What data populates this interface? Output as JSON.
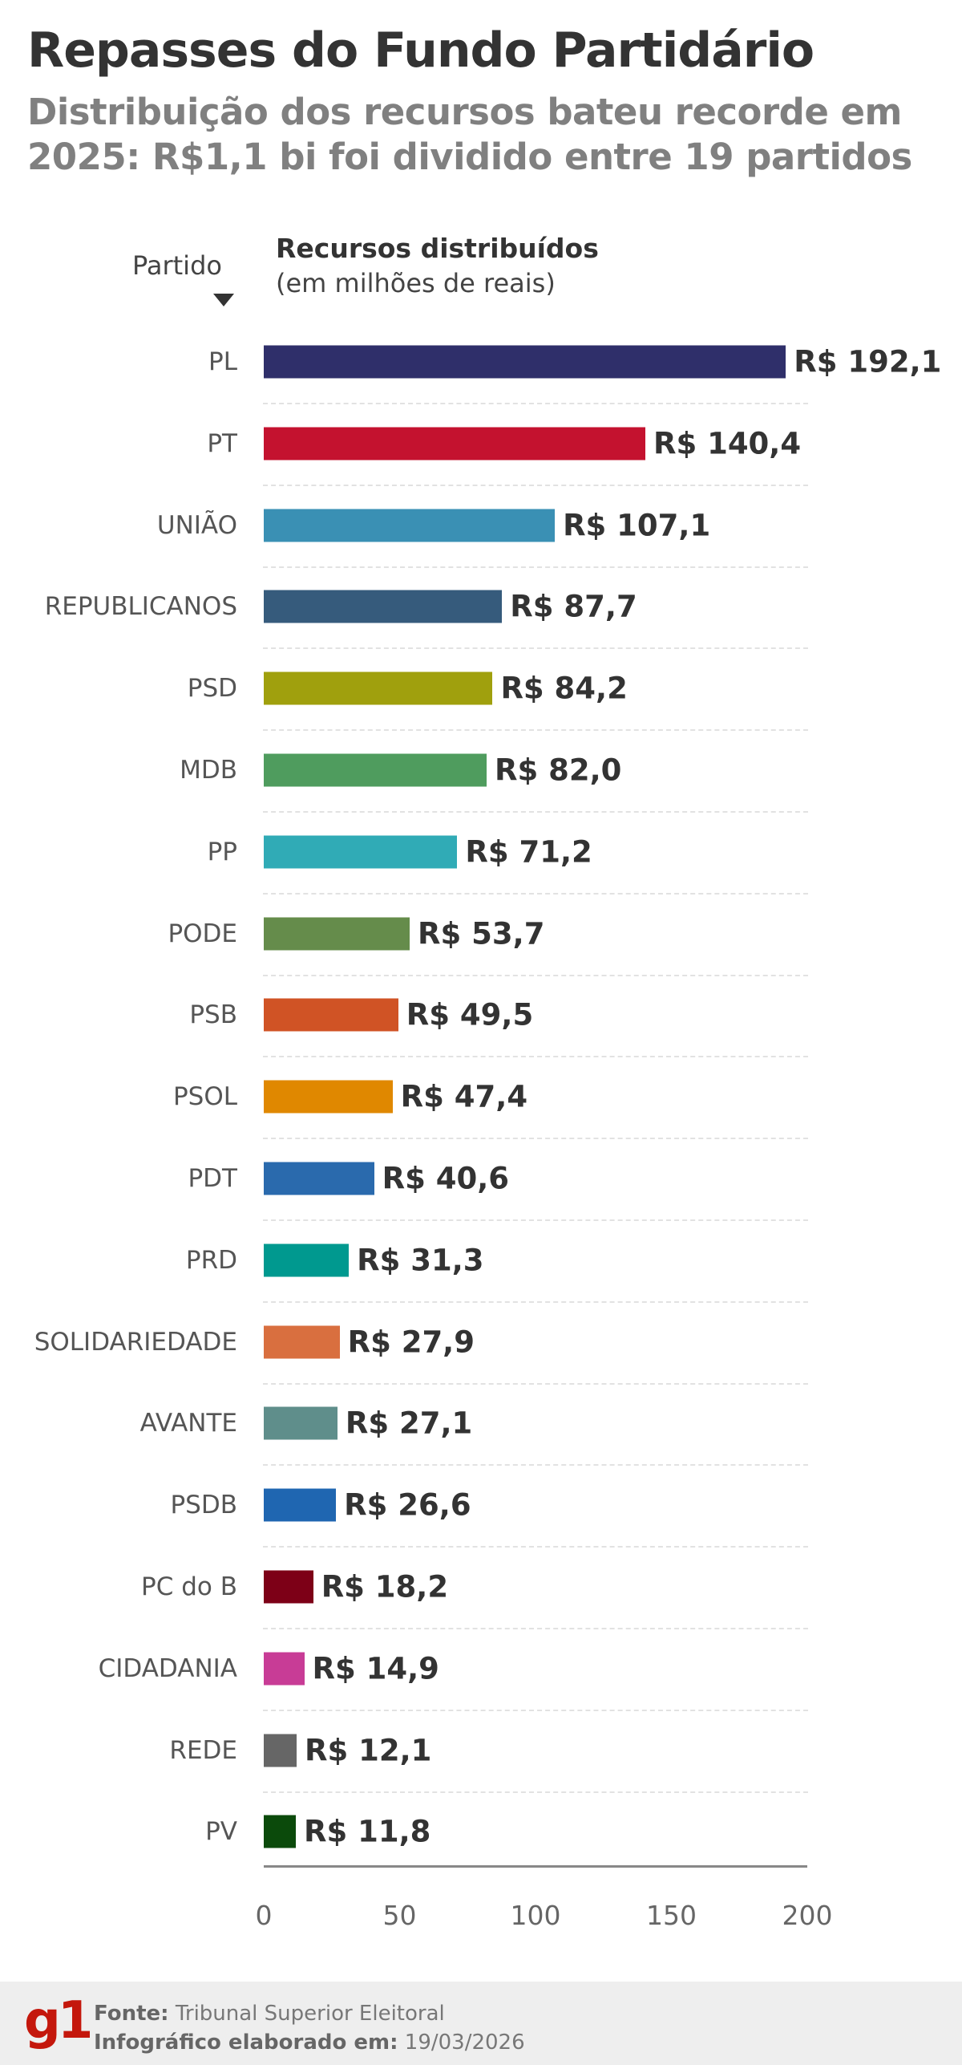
{
  "header": {
    "title": "Repasses do Fundo Partidário",
    "subtitle": "Distribuição dos recursos bateu recorde em 2025: R$1,1 bi foi dividido entre 19 partidos"
  },
  "chart_data": {
    "type": "bar",
    "orientation": "horizontal",
    "category_header": "Partido",
    "value_header": "Recursos distribuídos",
    "value_unit": "(em milhões de reais)",
    "categories": [
      "PL",
      "PT",
      "UNIÃO",
      "REPUBLICANOS",
      "PSD",
      "MDB",
      "PP",
      "PODE",
      "PSB",
      "PSOL",
      "PDT",
      "PRD",
      "SOLIDARIEDADE",
      "AVANTE",
      "PSDB",
      "PC do B",
      "CIDADANIA",
      "REDE",
      "PV"
    ],
    "values": [
      192.1,
      140.4,
      107.1,
      87.7,
      84.2,
      82.0,
      71.2,
      53.7,
      49.5,
      47.4,
      40.6,
      31.3,
      27.9,
      27.1,
      26.6,
      18.2,
      14.9,
      12.1,
      11.8
    ],
    "value_labels": [
      "R$ 192,1",
      "R$ 140,4",
      "R$ 107,1",
      "R$ 87,7",
      "R$ 84,2",
      "R$ 82,0",
      "R$ 71,2",
      "R$ 53,7",
      "R$ 49,5",
      "R$ 47,4",
      "R$ 40,6",
      "R$ 31,3",
      "R$ 27,9",
      "R$ 27,1",
      "R$ 26,6",
      "R$ 18,2",
      "R$ 14,9",
      "R$ 12,1",
      "R$ 11,8"
    ],
    "colors": [
      "#2f2f6a",
      "#c4122f",
      "#3a90b4",
      "#365b7c",
      "#a0a00d",
      "#4f9c5e",
      "#30abb6",
      "#658c4b",
      "#d05325",
      "#e08800",
      "#2a6aad",
      "#00998f",
      "#d96f3f",
      "#5f8e8b",
      "#1f66b1",
      "#7d0017",
      "#c83c96",
      "#666666",
      "#0b4a0b"
    ],
    "xlim": [
      0,
      200
    ],
    "xticks": [
      "0",
      "50",
      "100",
      "150",
      "200"
    ],
    "grid": false
  },
  "footer": {
    "logo": "g1",
    "source_label": "Fonte:",
    "source": "Tribunal Superior Eleitoral",
    "date_label": "Infográfico elaborado em:",
    "date": "19/03/2026"
  }
}
